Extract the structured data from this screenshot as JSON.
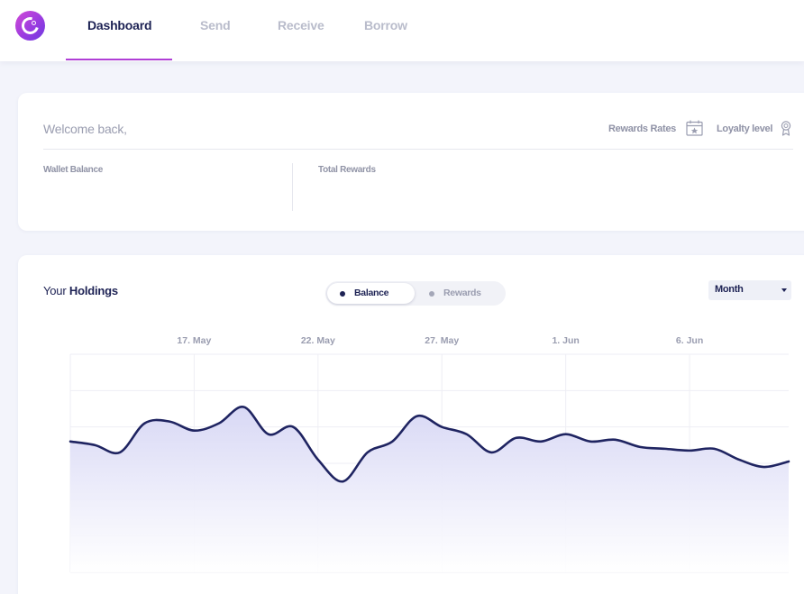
{
  "nav": {
    "tabs": [
      {
        "label": "Dashboard",
        "active": true
      },
      {
        "label": "Send",
        "active": false
      },
      {
        "label": "Receive",
        "active": false
      },
      {
        "label": "Borrow",
        "active": false
      }
    ]
  },
  "welcome": {
    "greeting": "Welcome back,",
    "rewards_rates_label": "Rewards Rates",
    "loyalty_level_label": "Loyalty level",
    "wallet_balance_label": "Wallet Balance",
    "total_rewards_label": "Total Rewards"
  },
  "holdings": {
    "title_prefix": "Your",
    "title_bold": "Holdings",
    "toggle": {
      "selected": "Balance",
      "options": [
        "Balance",
        "Rewards"
      ]
    },
    "period_select": {
      "value": "Month"
    }
  },
  "colors": {
    "accent": "#b03fd6",
    "navy": "#1d2254",
    "line": "#1f2461",
    "fill_top": "#dcdcf6"
  },
  "icons": {
    "calendar": "calendar-star-icon",
    "ribbon": "award-ribbon-icon",
    "caret": "caret-down-icon"
  },
  "chart_data": {
    "type": "area",
    "x_tick_labels": [
      "17. May",
      "22. May",
      "27. May",
      "1. Jun",
      "6. Jun"
    ],
    "x": [
      "12. May",
      "13. May",
      "14. May",
      "15. May",
      "16. May",
      "17. May",
      "18. May",
      "19. May",
      "20. May",
      "21. May",
      "22. May",
      "23. May",
      "24. May",
      "25. May",
      "26. May",
      "27. May",
      "28. May",
      "29. May",
      "30. May",
      "31. May",
      "1. Jun",
      "2. Jun",
      "3. Jun",
      "4. Jun",
      "5. Jun",
      "6. Jun",
      "7. Jun",
      "8. Jun",
      "9. Jun",
      "10. Jun"
    ],
    "values": [
      72,
      70,
      66,
      82,
      83,
      78,
      82,
      91,
      76,
      80,
      62,
      50,
      66,
      72,
      86,
      80,
      76,
      66,
      74,
      72,
      76,
      72,
      73,
      69,
      68,
      67,
      68,
      62,
      58,
      61
    ],
    "ylim": [
      0,
      120
    ],
    "ylabel": "",
    "xlabel": "",
    "grid": true,
    "legend": "none"
  }
}
